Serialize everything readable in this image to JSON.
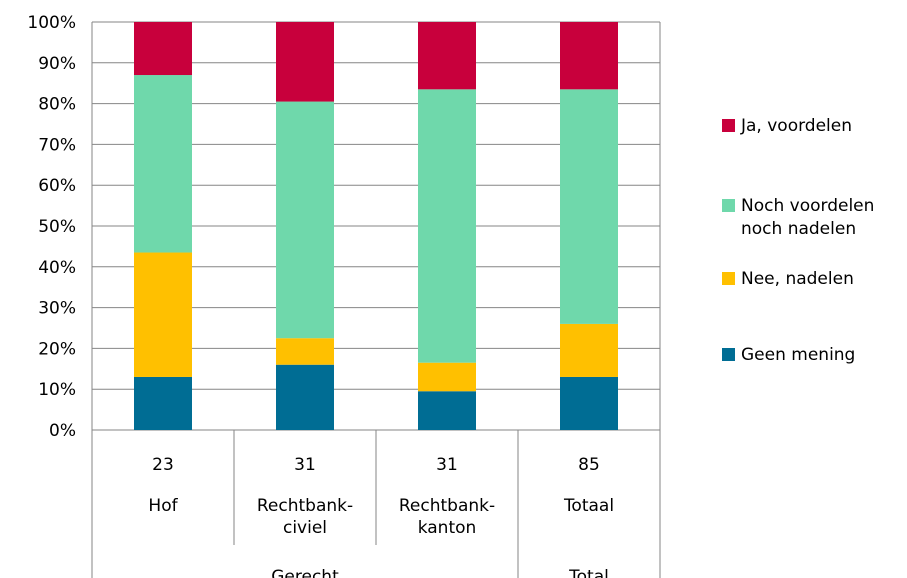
{
  "chart_data": {
    "type": "bar",
    "stacked": true,
    "percent": true,
    "ylim": [
      0,
      100
    ],
    "yticks": [
      "0%",
      "10%",
      "20%",
      "30%",
      "40%",
      "50%",
      "60%",
      "70%",
      "80%",
      "90%",
      "100%"
    ],
    "grid": true,
    "legend_position": "right",
    "categories": [
      {
        "count": "23",
        "name": [
          "Hof"
        ]
      },
      {
        "count": "31",
        "name": [
          "Rechtbank-",
          "civiel"
        ]
      },
      {
        "count": "31",
        "name": [
          "Rechtbank-",
          "kanton"
        ]
      },
      {
        "count": "85",
        "name": [
          "Totaal"
        ]
      }
    ],
    "groups": [
      {
        "label": "Gerecht",
        "span": [
          0,
          2
        ]
      },
      {
        "label": "Total",
        "span": [
          3,
          3
        ]
      }
    ],
    "series": [
      {
        "name": "Geen mening",
        "color": "#006d94",
        "values": [
          13,
          16,
          9.5,
          13
        ]
      },
      {
        "name": "Nee, nadelen",
        "color": "#ffc000",
        "values": [
          30.5,
          6.5,
          7,
          13
        ]
      },
      {
        "name": "Noch voordelen noch nadelen",
        "legend_lines": [
          "Noch voordelen",
          "noch nadelen"
        ],
        "color": "#6fd8ab",
        "values": [
          43.5,
          58,
          67,
          57.5
        ]
      },
      {
        "name": "Ja, voordelen",
        "color": "#c8003c",
        "values": [
          13,
          19.5,
          16.5,
          16.5
        ]
      }
    ]
  }
}
